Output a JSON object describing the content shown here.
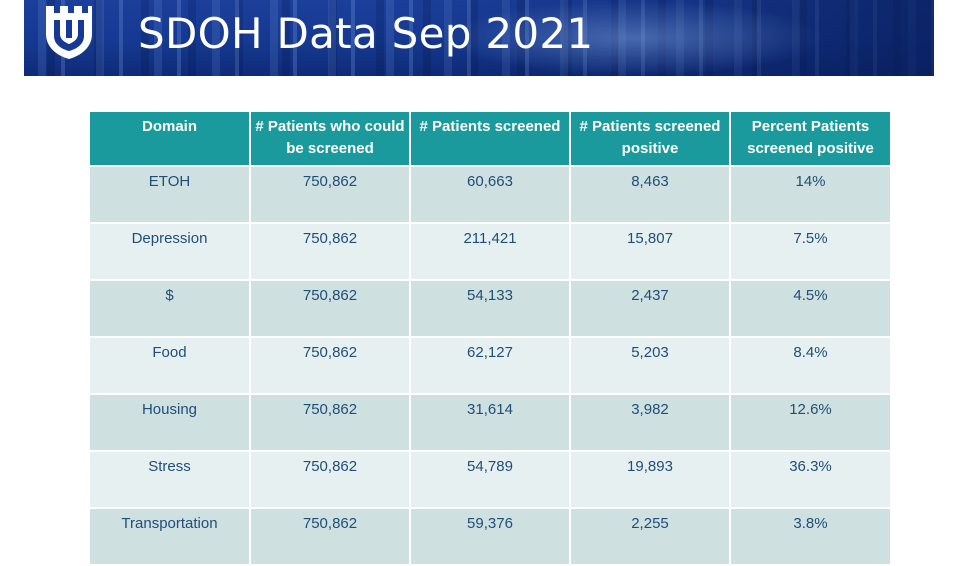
{
  "header": {
    "title": "SDOH Data Sep 2021",
    "logo_icon": "shield-logo-icon"
  },
  "table": {
    "columns": [
      "Domain",
      "# Patients who could be screened",
      "# Patients screened",
      "# Patients screened positive",
      "Percent Patients screened positive"
    ],
    "rows": [
      [
        "ETOH",
        "750,862",
        "60,663",
        "8,463",
        "14%"
      ],
      [
        "Depression",
        "750,862",
        "211,421",
        "15,807",
        "7.5%"
      ],
      [
        "$",
        "750,862",
        "54,133",
        "2,437",
        "4.5%"
      ],
      [
        "Food",
        "750,862",
        "62,127",
        "5,203",
        "8.4%"
      ],
      [
        "Housing",
        "750,862",
        "31,614",
        "3,982",
        "12.6%"
      ],
      [
        "Stress",
        "750,862",
        "54,789",
        "19,893",
        "36.3%"
      ],
      [
        "Transportation",
        "750,862",
        "59,376",
        "2,255",
        "3.8%"
      ]
    ]
  },
  "colors": {
    "header_bg": "#1a9a9c",
    "row_dark": "#cfe0e0",
    "row_light": "#e7f0f0",
    "cell_text": "#1f4e79",
    "banner": "#163a93"
  }
}
